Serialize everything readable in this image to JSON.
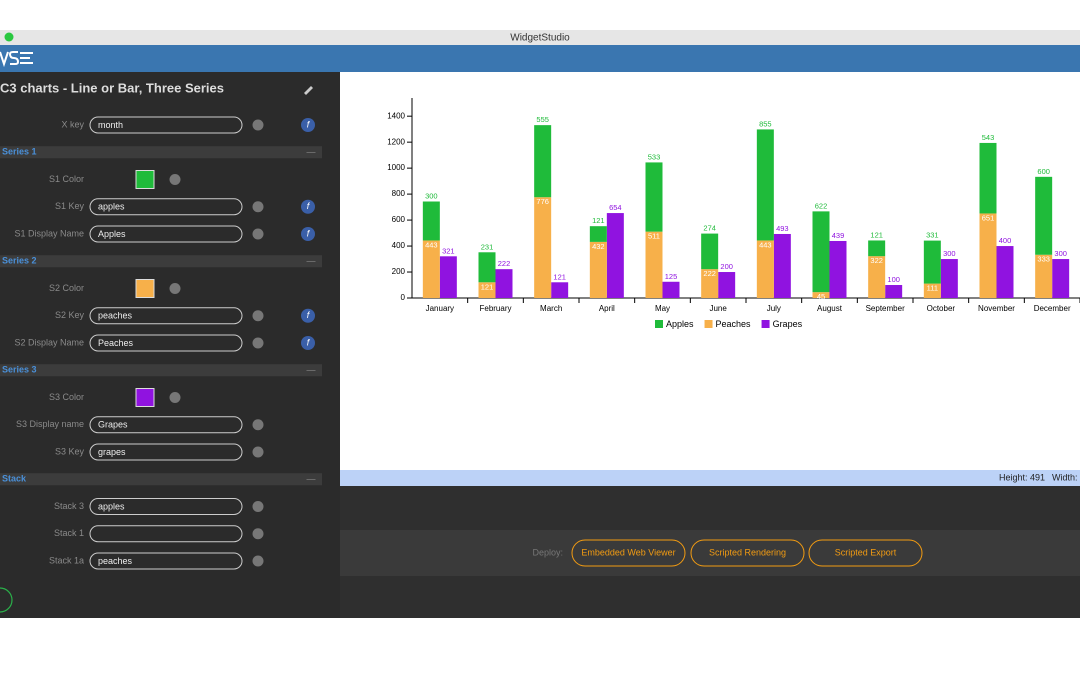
{
  "window": {
    "title": "WidgetStudio"
  },
  "panel": {
    "title": "C3 charts - Line or Bar, Three Series",
    "sections": [
      {
        "fields": [
          {
            "label": "X key",
            "value": "month",
            "fn": true
          }
        ]
      },
      {
        "name": "Series 1",
        "fields": [
          {
            "label": "S1 Color",
            "color": "#1fbb3a"
          },
          {
            "label": "S1 Key",
            "value": "apples",
            "fn": true
          },
          {
            "label": "S1 Display Name",
            "value": "Apples",
            "fn": true
          }
        ]
      },
      {
        "name": "Series 2",
        "fields": [
          {
            "label": "S2 Color",
            "color": "#f7b04a"
          },
          {
            "label": "S2 Key",
            "value": "peaches",
            "fn": true
          },
          {
            "label": "S2 Display Name",
            "value": "Peaches",
            "fn": true
          }
        ]
      },
      {
        "name": "Series 3",
        "fields": [
          {
            "label": "S3 Color",
            "color": "#9013e0"
          },
          {
            "label": "S3 Display name",
            "value": "Grapes"
          },
          {
            "label": "S3 Key",
            "value": "grapes"
          }
        ]
      },
      {
        "name": "Stack",
        "fields": [
          {
            "label": "Stack 3",
            "value": "apples"
          },
          {
            "label": "Stack 1"
          },
          {
            "label": "Stack 1a",
            "value": "peaches"
          }
        ]
      }
    ]
  },
  "status": {
    "height": "Height: 491",
    "width": "Width:"
  },
  "deploy": {
    "label": "Deploy:",
    "buttons": [
      "Embedded Web Viewer",
      "Scripted Rendering",
      "Scripted Export"
    ]
  },
  "chart_data": {
    "type": "bar",
    "stacked": true,
    "categories": [
      "January",
      "February",
      "March",
      "April",
      "May",
      "June",
      "July",
      "August",
      "September",
      "October",
      "November",
      "December"
    ],
    "series": [
      {
        "name": "Apples",
        "color": "#1fbb3a",
        "stack": "A",
        "values": [
          300,
          231,
          555,
          121,
          533,
          274,
          855,
          622,
          121,
          331,
          543,
          600
        ]
      },
      {
        "name": "Peaches",
        "color": "#f7b04a",
        "stack": "A",
        "values": [
          443,
          121,
          776,
          432,
          511,
          222,
          443,
          45,
          322,
          111,
          651,
          333
        ]
      },
      {
        "name": "Grapes",
        "color": "#9013e0",
        "stack": "B",
        "values": [
          321,
          222,
          121,
          654,
          125,
          200,
          493,
          439,
          100,
          300,
          400,
          300
        ]
      }
    ],
    "ylim": [
      0,
      1540
    ],
    "yticks": [
      0,
      200,
      400,
      600,
      800,
      1000,
      1200,
      1400
    ],
    "legend": "bottom"
  }
}
